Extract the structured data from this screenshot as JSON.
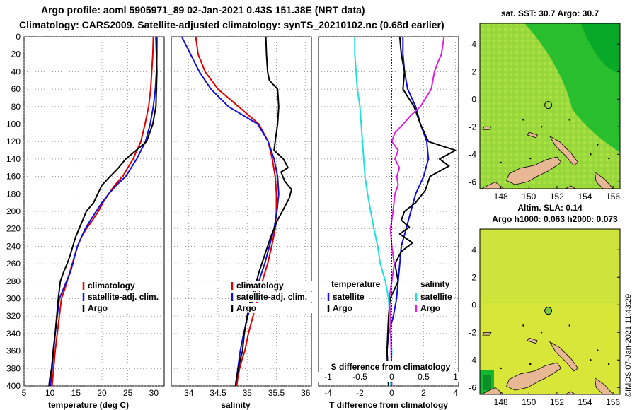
{
  "title_line1": "Argo profile: aoml 5905971_89 02-Jan-2021 0.43S 151.38E (NRT data)",
  "title_line2": "Climatology: CARS2009. Satellite-adjusted climatology: synTS_20210102.nc (0.68d earlier)",
  "stamp": "©IMOS 07-Jan-2021 11:43:29",
  "colors": {
    "climatology": "#e00000",
    "satellite": "#1010d8",
    "argo": "#000000",
    "t_satellite": "#1010d8",
    "s_satellite": "#20e0e0",
    "s_argo": "#e020e0",
    "ocean_warm": "#a6e23a",
    "ocean_cool": "#18c030",
    "land": "#e8b894"
  },
  "chart_data": [
    {
      "name": "temperature",
      "type": "line",
      "xlabel": "temperature (deg C)",
      "ylabel": "",
      "xlim": [
        5,
        32
      ],
      "ylim": [
        400,
        0
      ],
      "xticks": [
        5,
        10,
        15,
        20,
        25,
        30
      ],
      "yticks": [
        0,
        20,
        40,
        60,
        80,
        100,
        120,
        140,
        160,
        180,
        200,
        220,
        240,
        260,
        280,
        300,
        320,
        340,
        360,
        380,
        400
      ],
      "legend": [
        {
          "label": "climatology",
          "color": "#e00000"
        },
        {
          "label": "satellite-adj. clim.",
          "color": "#1010d8"
        },
        {
          "label": "Argo",
          "color": "#000000"
        }
      ],
      "series": [
        {
          "name": "climatology",
          "color": "#e00000",
          "x": [
            29.9,
            29.8,
            29.6,
            29.4,
            29.0,
            28.3,
            27.5,
            26.0,
            24.0,
            22.5,
            21.3,
            20.2,
            19.3,
            18.2,
            17.0,
            16.0,
            15.3,
            14.8,
            14.3,
            13.8,
            13.3,
            12.8,
            12.2,
            11.8,
            11.4,
            11.0,
            10.7,
            10.4
          ],
          "y": [
            0,
            20,
            40,
            60,
            80,
            100,
            120,
            140,
            160,
            170,
            180,
            190,
            200,
            210,
            220,
            230,
            240,
            250,
            260,
            270,
            280,
            290,
            300,
            320,
            340,
            360,
            380,
            400
          ]
        },
        {
          "name": "satellite-adj. clim.",
          "color": "#1010d8",
          "x": [
            30.6,
            30.6,
            30.5,
            30.3,
            29.9,
            29.3,
            28.4,
            26.7,
            24.6,
            22.8,
            21.3,
            20.0,
            18.9,
            17.8,
            16.8,
            16.0,
            15.3,
            14.8,
            14.4,
            13.9,
            13.2,
            12.5,
            11.8,
            11.4,
            11.0,
            10.7,
            10.4,
            10.1
          ],
          "y": [
            0,
            20,
            40,
            60,
            80,
            100,
            120,
            140,
            160,
            170,
            180,
            190,
            200,
            210,
            220,
            230,
            240,
            250,
            260,
            270,
            280,
            290,
            300,
            320,
            340,
            360,
            380,
            400
          ]
        },
        {
          "name": "Argo",
          "color": "#000000",
          "x": [
            30.4,
            30.5,
            30.6,
            30.5,
            30.4,
            29.8,
            28.6,
            26.6,
            25.4,
            24.6,
            23.2,
            21.6,
            20.0,
            19.2,
            18.4,
            17.0,
            16.3,
            15.6,
            14.9,
            14.4,
            13.9,
            13.3,
            12.6,
            12.0,
            11.6,
            11.3,
            11.0,
            10.6,
            10.3,
            10.0,
            9.8
          ],
          "y": [
            0,
            20,
            40,
            60,
            80,
            100,
            120,
            130,
            136,
            140,
            150,
            160,
            170,
            180,
            190,
            200,
            210,
            220,
            230,
            240,
            250,
            260,
            270,
            280,
            300,
            320,
            340,
            360,
            380,
            390,
            400
          ]
        }
      ]
    },
    {
      "name": "salinity",
      "type": "line",
      "xlabel": "salinity",
      "ylabel": "",
      "xlim": [
        33.7,
        36.1
      ],
      "ylim": [
        400,
        0
      ],
      "xticks": [
        34,
        34.5,
        35,
        35.5,
        36
      ],
      "xtick_labels": [
        "34",
        "34.5",
        "35",
        "35.5",
        "36"
      ],
      "legend": [
        {
          "label": "climatology",
          "color": "#e00000"
        },
        {
          "label": "satellite-adj. clim.",
          "color": "#1010d8"
        },
        {
          "label": "Argo",
          "color": "#000000"
        }
      ],
      "series": [
        {
          "name": "climatology",
          "color": "#e00000",
          "x": [
            34.12,
            34.16,
            34.28,
            34.5,
            34.85,
            35.2,
            35.36,
            35.43,
            35.48,
            35.5,
            35.5,
            35.48,
            35.42,
            35.35,
            35.26,
            35.18,
            35.1,
            35.02,
            34.96,
            34.91,
            34.87,
            34.84,
            34.82
          ],
          "y": [
            0,
            20,
            40,
            60,
            80,
            100,
            120,
            140,
            160,
            180,
            200,
            220,
            240,
            260,
            280,
            300,
            320,
            340,
            360,
            370,
            380,
            390,
            400
          ]
        },
        {
          "name": "satellite-adj. clim.",
          "color": "#1010d8",
          "x": [
            33.88,
            34.03,
            34.18,
            34.38,
            34.68,
            35.18,
            35.36,
            35.46,
            35.52,
            35.54,
            35.51,
            35.46,
            35.38,
            35.3,
            35.2,
            35.1,
            35.01,
            34.94,
            34.88,
            34.84,
            34.8
          ],
          "y": [
            0,
            20,
            40,
            60,
            80,
            100,
            120,
            140,
            160,
            180,
            200,
            220,
            240,
            260,
            280,
            300,
            320,
            340,
            360,
            380,
            400
          ]
        },
        {
          "name": "Argo",
          "color": "#000000",
          "x": [
            35.32,
            35.33,
            35.35,
            35.38,
            35.52,
            35.54,
            35.52,
            35.48,
            35.46,
            35.62,
            35.7,
            35.58,
            35.64,
            35.76,
            35.72,
            35.6,
            35.52,
            35.46,
            35.4,
            35.3,
            35.2,
            35.12,
            35.06,
            35.0,
            34.95,
            34.92,
            34.88,
            34.85,
            34.82,
            34.8
          ],
          "y": [
            0,
            20,
            40,
            50,
            60,
            80,
            100,
            120,
            130,
            140,
            150,
            155,
            165,
            175,
            185,
            200,
            210,
            220,
            230,
            250,
            270,
            290,
            300,
            320,
            340,
            360,
            370,
            380,
            390,
            400
          ]
        }
      ]
    },
    {
      "name": "difference",
      "type": "line",
      "xlabel": "T difference from climatology",
      "inner_label": "S difference from climatology",
      "xlim": [
        -4.6,
        4.2
      ],
      "ylim": [
        400,
        0
      ],
      "xticks": [
        -4,
        -2,
        0,
        2,
        4
      ],
      "top_scale": {
        "xlim": [
          -1.15,
          1.05
        ],
        "ticks": [
          -1,
          -0.5,
          0,
          0.5,
          1
        ],
        "tick_labels": [
          "-1",
          "-0.5",
          "0",
          "0.5",
          "1"
        ]
      },
      "legend_left_title": "temperature",
      "legend_right_title": "salinity",
      "legend": [
        {
          "label": "satellite",
          "color": "#1010d8",
          "group": "temperature"
        },
        {
          "label": "Argo",
          "color": "#000000",
          "group": "temperature"
        },
        {
          "label": "satellite",
          "color": "#20e0e0",
          "group": "salinity"
        },
        {
          "label": "Argo",
          "color": "#e020e0",
          "group": "salinity"
        }
      ],
      "series": [
        {
          "name": "T satellite",
          "color": "#1010d8",
          "scale": "bottom",
          "x": [
            0.7,
            0.7,
            0.8,
            1.0,
            1.5,
            1.8,
            2.2,
            2.3,
            2.0,
            1.5,
            1.2,
            0.9,
            0.6,
            0.5,
            0.4,
            0.3,
            0.1,
            -0.2,
            -0.3,
            -0.2
          ],
          "y": [
            0,
            20,
            40,
            60,
            80,
            100,
            120,
            140,
            160,
            180,
            200,
            220,
            240,
            260,
            280,
            300,
            320,
            340,
            360,
            400
          ]
        },
        {
          "name": "T Argo",
          "color": "#000000",
          "scale": "bottom",
          "x": [
            0.5,
            0.6,
            0.8,
            0.7,
            1.4,
            1.8,
            2.3,
            3.3,
            4.0,
            3.0,
            3.6,
            2.4,
            2.1,
            1.5,
            0.8,
            0.6,
            1.1,
            0.5,
            1.3,
            0.6,
            0.2,
            0.4,
            -0.1,
            -0.2,
            -0.3,
            -0.2
          ],
          "y": [
            0,
            20,
            40,
            60,
            80,
            100,
            120,
            126,
            130,
            140,
            148,
            160,
            176,
            190,
            200,
            210,
            218,
            226,
            236,
            246,
            260,
            280,
            300,
            320,
            360,
            400
          ]
        },
        {
          "name": "S satellite",
          "color": "#20e0e0",
          "scale": "top",
          "x": [
            -0.58,
            -0.58,
            -0.56,
            -0.54,
            -0.5,
            -0.48,
            -0.46,
            -0.44,
            -0.42,
            -0.38,
            -0.33,
            -0.28,
            -0.22,
            -0.18,
            -0.1,
            -0.05,
            -0.02,
            0.0,
            -0.02
          ],
          "y": [
            0,
            20,
            40,
            60,
            80,
            100,
            120,
            140,
            160,
            180,
            200,
            220,
            240,
            260,
            280,
            300,
            340,
            360,
            400
          ]
        },
        {
          "name": "S Argo",
          "color": "#e020e0",
          "scale": "top",
          "x": [
            0.82,
            0.78,
            0.72,
            0.67,
            0.62,
            0.45,
            0.3,
            0.18,
            0.05,
            0.0,
            0.1,
            0.05,
            0.12,
            0.08,
            0.1,
            0.05,
            0.02,
            -0.02,
            0.0,
            0.04,
            0.0,
            -0.04,
            -0.02,
            0.0
          ],
          "y": [
            0,
            20,
            30,
            40,
            60,
            80,
            90,
            100,
            110,
            120,
            130,
            140,
            150,
            160,
            170,
            180,
            200,
            220,
            240,
            260,
            280,
            300,
            320,
            400
          ]
        }
      ]
    },
    {
      "name": "sst-map",
      "type": "heatmap",
      "title": "sat. SST: 30.7 Argo: 30.7",
      "xlim": [
        146.5,
        156.5
      ],
      "ylim": [
        -6.5,
        5.5
      ],
      "xticks": [
        148,
        150,
        152,
        154,
        156
      ],
      "yticks": [
        4,
        2,
        0,
        -2,
        -4,
        -6
      ],
      "marker": {
        "lon": 151.38,
        "lat": -0.43
      }
    },
    {
      "name": "sla-map",
      "type": "heatmap",
      "title": "Altim. SLA: 0.14",
      "subtitle": "Argo h1000: 0.063 h2000: 0.073",
      "xlim": [
        146.5,
        156.5
      ],
      "ylim": [
        -6.5,
        5.5
      ],
      "xticks": [
        148,
        150,
        152,
        154,
        156
      ],
      "yticks": [
        4,
        2,
        0,
        -2,
        -4,
        -6
      ],
      "marker": {
        "lon": 151.38,
        "lat": -0.43
      }
    }
  ]
}
